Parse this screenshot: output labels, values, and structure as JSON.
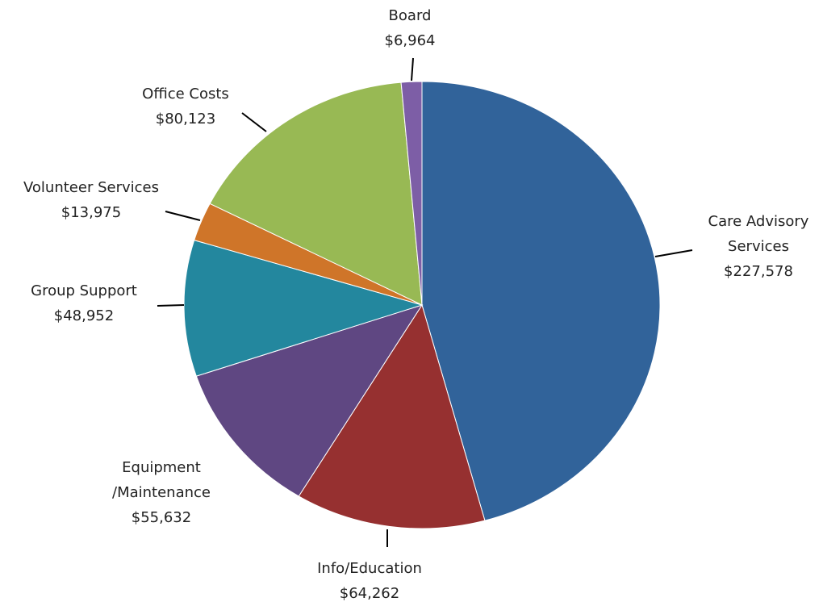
{
  "chart_data": {
    "type": "pie",
    "categories": [
      "Care Advisory Services",
      "Info/Education",
      "Equipment /Maintenance",
      "Group Support",
      "Volunteer Services",
      "Office Costs",
      "Board"
    ],
    "values": [
      227578,
      64262,
      55632,
      48952,
      13975,
      80123,
      6964
    ],
    "value_labels": [
      "$227,578",
      "$64,262",
      "$55,632",
      "$48,952",
      "$13,975",
      "$80,123",
      "$6,964"
    ],
    "colors": [
      "#31639a",
      "#963030",
      "#5f4782",
      "#23879e",
      "#cf7529",
      "#98b954",
      "#7d5ea6"
    ]
  }
}
